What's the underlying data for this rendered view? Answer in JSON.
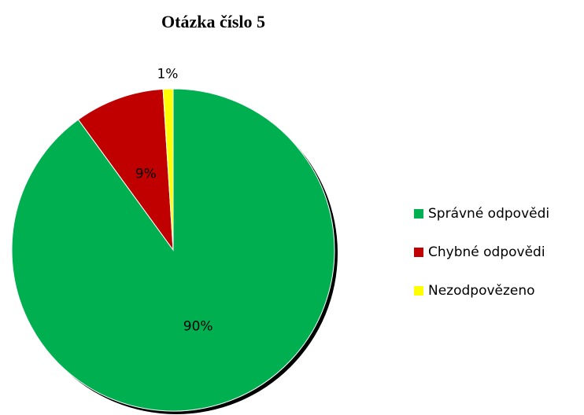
{
  "chart_data": {
    "type": "pie",
    "title": "Otázka číslo 5",
    "categories": [
      "Správné odpovědi",
      "Chybné odpovědi",
      "Nezodpovězeno"
    ],
    "values": [
      90,
      9,
      1
    ],
    "value_labels": [
      "90%",
      "9%",
      "1%"
    ],
    "colors": [
      "#00b050",
      "#c00000",
      "#ffff00"
    ],
    "legend": "right"
  }
}
